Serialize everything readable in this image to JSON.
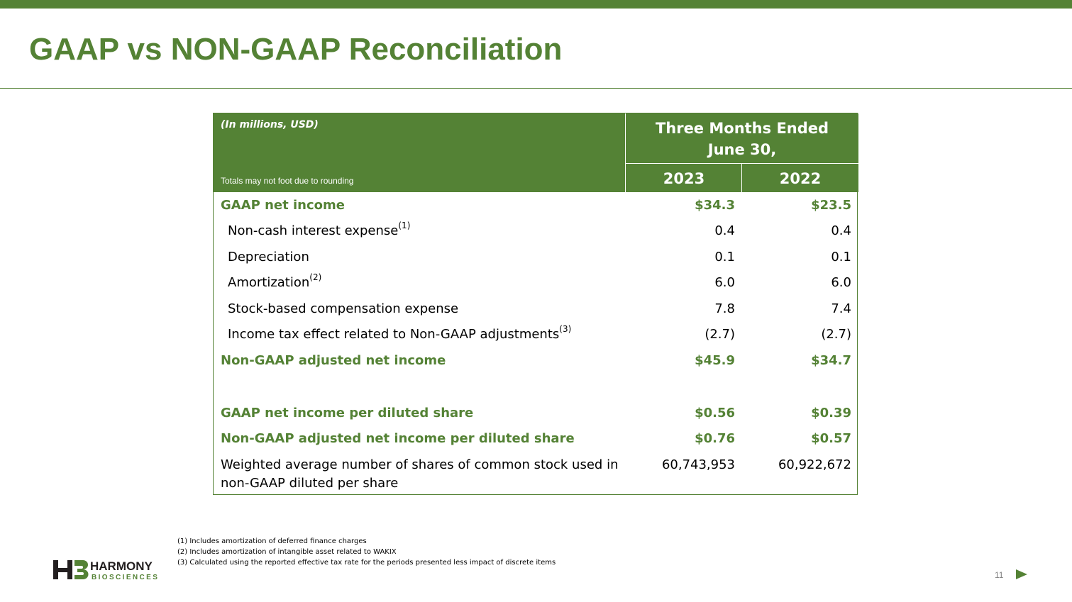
{
  "slide": {
    "title": "GAAP vs NON-GAAP Reconciliation",
    "page_number": "11"
  },
  "table": {
    "units": "(In millions, USD)",
    "rounding_note": "Totals may not foot due to rounding",
    "period_line1": "Three Months Ended",
    "period_line2": "June 30,",
    "year_a": "2023",
    "year_b": "2022",
    "rows": [
      {
        "label": "GAAP net income",
        "sup": "",
        "v2023": "$34.3",
        "v2022": "$23.5"
      },
      {
        "label": "Non-cash interest expense",
        "sup": "(1)",
        "v2023": "0.4",
        "v2022": "0.4"
      },
      {
        "label": "Depreciation",
        "sup": "",
        "v2023": "0.1",
        "v2022": "0.1"
      },
      {
        "label": "Amortization",
        "sup": "(2)",
        "v2023": "6.0",
        "v2022": "6.0"
      },
      {
        "label": "Stock-based compensation expense",
        "sup": "",
        "v2023": "7.8",
        "v2022": "7.4"
      },
      {
        "label": "Income tax effect related to Non-GAAP adjustments",
        "sup": "(3)",
        "v2023": "(2.7)",
        "v2022": "(2.7)"
      },
      {
        "label": "Non-GAAP adjusted net income",
        "sup": "",
        "v2023": "$45.9",
        "v2022": "$34.7"
      },
      {
        "label": "GAAP net income per diluted share",
        "sup": "",
        "v2023": "$0.56",
        "v2022": "$0.39"
      },
      {
        "label": "Non-GAAP adjusted net income per diluted share",
        "sup": "",
        "v2023": "$0.76",
        "v2022": "$0.57"
      },
      {
        "label_line1": "Weighted average number of shares of common stock used in",
        "label_line2": "non-GAAP diluted per share",
        "v2023": "60,743,953",
        "v2022": "60,922,672"
      }
    ]
  },
  "footnotes": [
    "(1) Includes amortization of deferred finance charges",
    "(2) Includes amortization of intangible asset related to WAKIX",
    "(3) Calculated using the reported effective tax rate for the periods presented less impact of discrete items"
  ],
  "logo": {
    "mark": "HB",
    "name": "HARMONY",
    "sub": "BIOSCIENCES"
  },
  "colors": {
    "brand_green": "#548235",
    "text": "#000000"
  }
}
